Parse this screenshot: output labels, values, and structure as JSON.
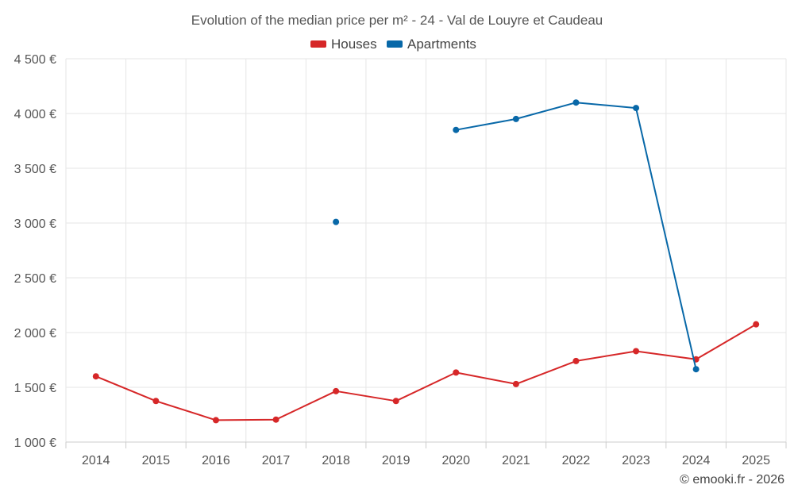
{
  "chart_data": {
    "type": "line",
    "title": "Evolution of the median price per m² - 24 - Val de Louyre et Caudeau",
    "xlabel": "",
    "ylabel": "",
    "categories": [
      "2014",
      "2015",
      "2016",
      "2017",
      "2018",
      "2019",
      "2020",
      "2021",
      "2022",
      "2023",
      "2024",
      "2025"
    ],
    "ylim": [
      1000,
      4500
    ],
    "y_ticks": [
      {
        "value": 1000,
        "label": "1 000 €"
      },
      {
        "value": 1500,
        "label": "1 500 €"
      },
      {
        "value": 2000,
        "label": "2 000 €"
      },
      {
        "value": 2500,
        "label": "2 500 €"
      },
      {
        "value": 3000,
        "label": "3 000 €"
      },
      {
        "value": 3500,
        "label": "3 500 €"
      },
      {
        "value": 4000,
        "label": "4 000 €"
      },
      {
        "value": 4500,
        "label": "4 500 €"
      }
    ],
    "grid": true,
    "legend_position": "top-center",
    "series": [
      {
        "name": "Houses",
        "color": "#d62728",
        "values": [
          1600,
          1375,
          1200,
          1205,
          1465,
          1375,
          1635,
          1530,
          1740,
          1830,
          1755,
          2075
        ]
      },
      {
        "name": "Apartments",
        "color": "#0868a8",
        "values": [
          null,
          null,
          null,
          null,
          3010,
          null,
          3850,
          3950,
          4100,
          4050,
          1665,
          null
        ]
      }
    ]
  },
  "credit": "© emooki.fr - 2026"
}
